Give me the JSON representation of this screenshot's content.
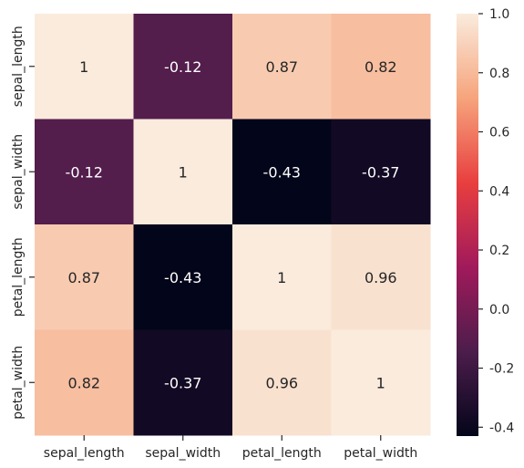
{
  "chart_data": {
    "type": "heatmap",
    "rows": [
      "sepal_length",
      "sepal_width",
      "petal_length",
      "petal_width"
    ],
    "columns": [
      "sepal_length",
      "sepal_width",
      "petal_length",
      "petal_width"
    ],
    "values": [
      [
        1,
        -0.12,
        0.87,
        0.82
      ],
      [
        -0.12,
        1,
        -0.43,
        -0.37
      ],
      [
        0.87,
        -0.43,
        1,
        0.96
      ],
      [
        0.82,
        -0.37,
        0.96,
        1
      ]
    ],
    "annotations": [
      [
        "1",
        "-0.12",
        "0.87",
        "0.82"
      ],
      [
        "-0.12",
        "1",
        "-0.43",
        "-0.37"
      ],
      [
        "0.87",
        "-0.43",
        "1",
        "0.96"
      ],
      [
        "0.82",
        "-0.37",
        "0.96",
        "1"
      ]
    ],
    "colorbar": {
      "range": [
        -0.43,
        1.0
      ],
      "ticks": [
        1.0,
        0.8,
        0.6,
        0.4,
        0.2,
        0.0,
        -0.2,
        -0.4
      ],
      "tick_labels": [
        "1.0",
        "0.8",
        "0.6",
        "0.4",
        "0.2",
        "0.0",
        "-0.2",
        "-0.4"
      ],
      "colormap": "rocket",
      "color_stops": [
        "#03051A",
        "#4C1D4B",
        "#A11A5B",
        "#E83F3F",
        "#F6A47C",
        "#FAEBDD"
      ]
    },
    "title": "",
    "xlabel": "",
    "ylabel": "",
    "grid": false
  }
}
